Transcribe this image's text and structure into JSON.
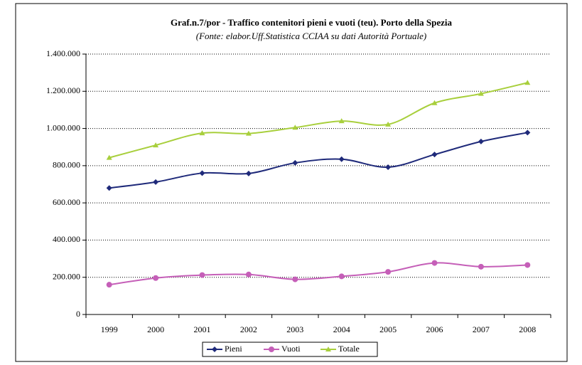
{
  "chart_data": {
    "type": "line",
    "title": "Graf.n.7/por - Traffico contenitori pieni e vuoti (teu). Porto della Spezia",
    "subtitle": "(Fonte: elabor.Uff.Statistica CCIAA su dati Autorità Portuale)",
    "categories": [
      "1999",
      "2000",
      "2001",
      "2002",
      "2003",
      "2004",
      "2005",
      "2006",
      "2007",
      "2008"
    ],
    "series": [
      {
        "name": "Pieni",
        "color": "#1f2a7a",
        "marker": "diamond",
        "values": [
          680000,
          712000,
          760000,
          758000,
          815000,
          835000,
          792000,
          860000,
          930000,
          978000
        ]
      },
      {
        "name": "Vuoti",
        "color": "#c55fb8",
        "marker": "circle",
        "values": [
          160000,
          196000,
          212000,
          215000,
          189000,
          205000,
          229000,
          277000,
          257000,
          266000
        ]
      },
      {
        "name": "Totale",
        "color": "#a8cf3c",
        "marker": "triangle",
        "values": [
          843000,
          910000,
          975000,
          973000,
          1005000,
          1040000,
          1022000,
          1137000,
          1187000,
          1246000
        ]
      }
    ],
    "ylim": [
      0,
      1400000
    ],
    "yticks": [
      0,
      {
        "value": 200000,
        "label": "200.000"
      },
      {
        "value": 400000,
        "label": "400.000"
      },
      {
        "value": 600000,
        "label": "600.000"
      },
      {
        "value": 800000,
        "label": "800.000"
      },
      {
        "value": 1000000,
        "label": "1.000.000"
      },
      {
        "value": 1200000,
        "label": "1.200.000"
      },
      {
        "value": 1400000,
        "label": "1.400.000"
      }
    ],
    "grid": true,
    "smooth": true,
    "legend": "bottom"
  }
}
